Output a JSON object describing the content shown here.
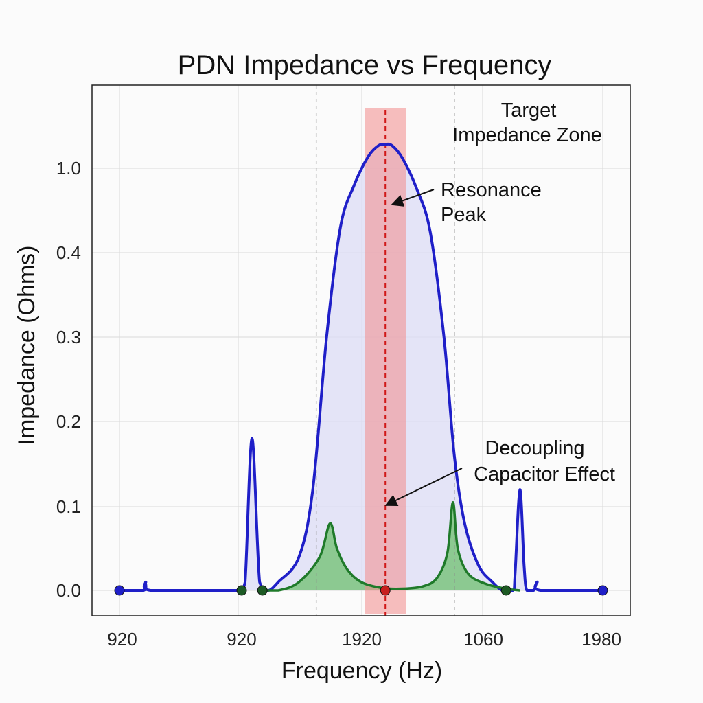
{
  "chart_data": {
    "type": "line",
    "title": "PDN Impedance vs Frequency",
    "xlabel": "Frequency (Hz)",
    "ylabel": "Impedance (Ohms)",
    "x_ticks": [
      "920",
      "920",
      "1920",
      "1060",
      "1980"
    ],
    "y_ticks": [
      "0.0",
      "0.1",
      "0.2",
      "0.3",
      "0.4",
      "1.0"
    ],
    "ylim": [
      0,
      1.3
    ],
    "grid": true,
    "series": [
      {
        "role": "total-impedance",
        "color": "#1f1fc8",
        "fill": "#dcdcf6",
        "points": [
          [
            0,
            0.0
          ],
          [
            0.35,
            0.0
          ],
          [
            0.38,
            0.01
          ],
          [
            0.45,
            0.0
          ],
          [
            1.4,
            0.0
          ],
          [
            1.6,
            0.0
          ],
          [
            1.75,
            0.0
          ],
          [
            1.82,
            0.01
          ],
          [
            1.92,
            0.18
          ],
          [
            2.03,
            0.01
          ],
          [
            2.15,
            0.0
          ],
          [
            2.3,
            0.01
          ],
          [
            2.6,
            0.04
          ],
          [
            2.8,
            0.12
          ],
          [
            3.0,
            0.3
          ],
          [
            3.2,
            0.58
          ],
          [
            3.4,
            0.88
          ],
          [
            3.6,
            1.08
          ],
          [
            3.75,
            1.16
          ],
          [
            3.85,
            1.17
          ],
          [
            3.95,
            1.16
          ],
          [
            4.1,
            1.07
          ],
          [
            4.3,
            0.86
          ],
          [
            4.5,
            0.55
          ],
          [
            4.7,
            0.3
          ],
          [
            4.85,
            0.16
          ],
          [
            5.0,
            0.08
          ],
          [
            5.2,
            0.03
          ],
          [
            5.4,
            0.01
          ],
          [
            5.55,
            0.0
          ],
          [
            5.7,
            0.0
          ],
          [
            5.73,
            0.02
          ],
          [
            5.8,
            0.12
          ],
          [
            5.86,
            0.03
          ],
          [
            5.9,
            0.0
          ],
          [
            6.0,
            0.0
          ],
          [
            6.05,
            0.01
          ],
          [
            6.1,
            0.0
          ],
          [
            7.0,
            0.0
          ]
        ]
      },
      {
        "role": "decoupling-capacitor-effect",
        "color": "#1f7a2a",
        "fill": "#7cc47f",
        "points": [
          [
            2.0,
            0.0
          ],
          [
            2.3,
            0.0
          ],
          [
            2.6,
            0.01
          ],
          [
            2.9,
            0.04
          ],
          [
            3.05,
            0.08
          ],
          [
            3.15,
            0.05
          ],
          [
            3.3,
            0.025
          ],
          [
            3.5,
            0.01
          ],
          [
            3.8,
            0.003
          ],
          [
            4.1,
            0.002
          ],
          [
            4.4,
            0.005
          ],
          [
            4.6,
            0.015
          ],
          [
            4.75,
            0.045
          ],
          [
            4.83,
            0.105
          ],
          [
            4.9,
            0.05
          ],
          [
            5.05,
            0.02
          ],
          [
            5.3,
            0.008
          ],
          [
            5.6,
            0.002
          ],
          [
            5.8,
            0.0
          ]
        ]
      }
    ],
    "markers": [
      {
        "x": 0.0,
        "y": 0.0,
        "color": "#1f1fc8"
      },
      {
        "x": 1.77,
        "y": 0.0,
        "color": "#1d5a24"
      },
      {
        "x": 2.07,
        "y": 0.0,
        "color": "#1d5a24"
      },
      {
        "x": 3.85,
        "y": 0.0,
        "color": "#c81e1e"
      },
      {
        "x": 5.6,
        "y": 0.0,
        "color": "#1d5a24"
      },
      {
        "x": 7.0,
        "y": 0.0,
        "color": "#1f1fc8"
      }
    ],
    "target_zone": {
      "x_start": 3.55,
      "x_end": 4.15,
      "color": "#f28a8a"
    },
    "dashed_verticals": [
      {
        "x": 2.85,
        "color": "#8a8a8a"
      },
      {
        "x": 3.85,
        "color": "#d01818"
      },
      {
        "x": 4.85,
        "color": "#8a8a8a"
      }
    ],
    "annotations": [
      {
        "label": "target-zone",
        "lines": [
          "Target",
          "Impedance Zone"
        ]
      },
      {
        "label": "resonance-peak",
        "lines": [
          "Resonance",
          "Peak"
        ]
      },
      {
        "label": "decoupling",
        "lines": [
          "Decoupling",
          "Capacitor Effect"
        ]
      }
    ]
  }
}
